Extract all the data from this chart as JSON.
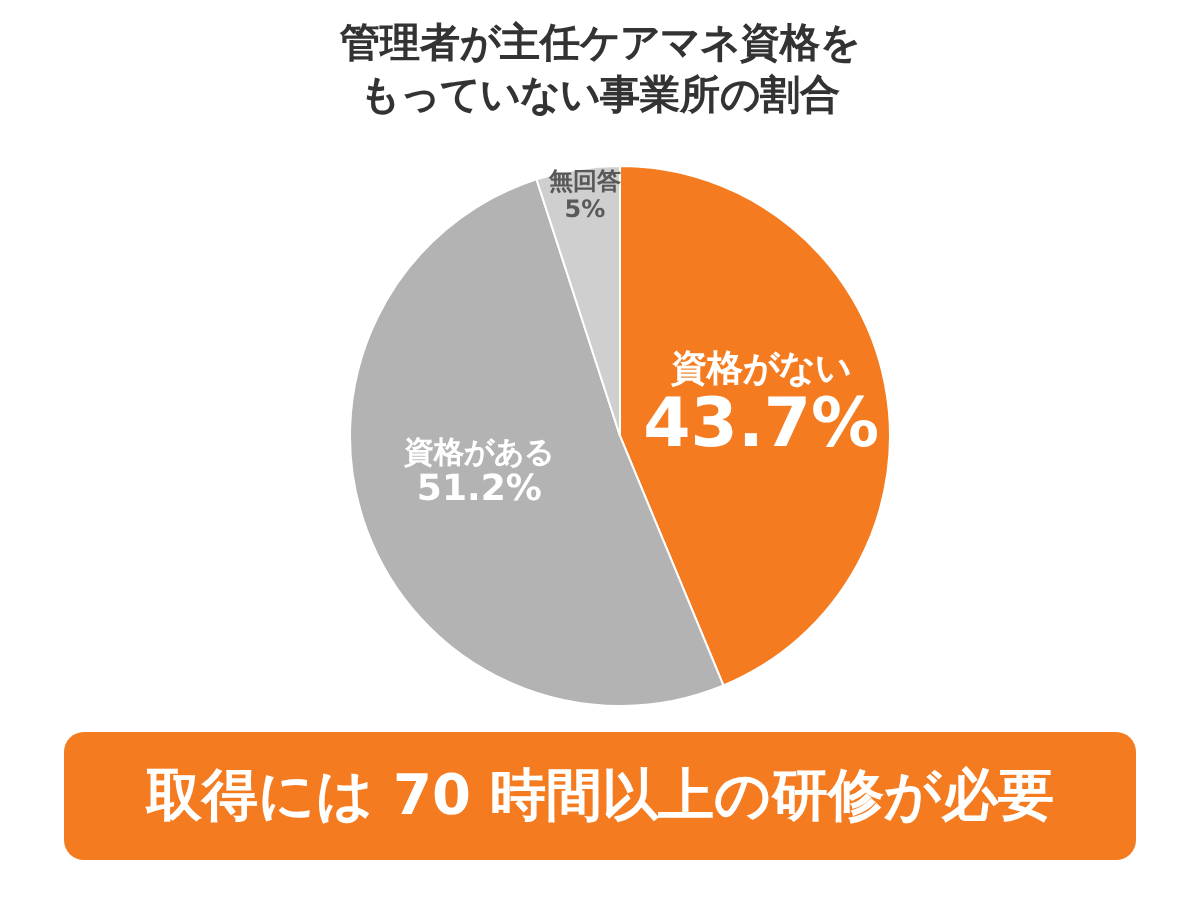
{
  "chart_data": {
    "type": "pie",
    "title": "管理者が主任ケアマネ資格をもっていない事業所の割合",
    "categories": [
      "資格がない",
      "資格がある",
      "無回答"
    ],
    "values": [
      43.7,
      51.2,
      5
    ],
    "value_labels": [
      "43.7%",
      "51.2%",
      "5%"
    ],
    "colors": [
      "#f47b20",
      "#b3b3b3",
      "#cfcfcf"
    ],
    "annotations": [
      "取得には 70 時間以上の研修が必要"
    ]
  }
}
